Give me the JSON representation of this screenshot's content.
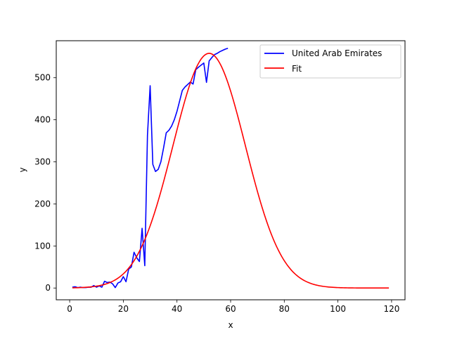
{
  "chart_data": {
    "type": "line",
    "title": "",
    "xlabel": "x",
    "ylabel": "y",
    "xlim": [
      -5,
      125
    ],
    "ylim": [
      -28,
      588
    ],
    "x_ticks": [
      0,
      20,
      40,
      60,
      80,
      100,
      120
    ],
    "y_ticks": [
      0,
      100,
      200,
      300,
      400,
      500
    ],
    "grid": false,
    "legend_position": "upper-right",
    "series": [
      {
        "name": "United Arab Emirates",
        "color": "#0000ff",
        "x": [
          1,
          2,
          3,
          4,
          5,
          6,
          7,
          8,
          9,
          10,
          11,
          12,
          13,
          14,
          15,
          16,
          17,
          18,
          19,
          20,
          21,
          22,
          23,
          24,
          25,
          26,
          27,
          28,
          29,
          30,
          31,
          32,
          33,
          34,
          35,
          36,
          37,
          38,
          39,
          40,
          41,
          42,
          43,
          44,
          45,
          46,
          47,
          48,
          49,
          50,
          51,
          52,
          53,
          54,
          55,
          56,
          57,
          58,
          59
        ],
        "values": [
          2,
          3,
          1,
          2,
          1,
          1,
          2,
          2,
          6,
          2,
          5,
          2,
          16,
          13,
          14,
          10,
          1,
          12,
          15,
          27,
          15,
          45,
          50,
          85,
          72,
          63,
          142,
          53,
          363,
          481,
          294,
          277,
          282,
          300,
          333,
          369,
          375,
          385,
          400,
          420,
          445,
          470,
          478,
          484,
          490,
          485,
          519,
          525,
          530,
          535,
          489,
          540,
          548,
          555,
          558,
          562,
          565,
          568,
          570
        ]
      },
      {
        "name": "Fit",
        "color": "#ff0000",
        "model": "gaussian",
        "peak": 558,
        "center": 52,
        "width": 13.5,
        "x_range": [
          1,
          119
        ]
      }
    ]
  }
}
